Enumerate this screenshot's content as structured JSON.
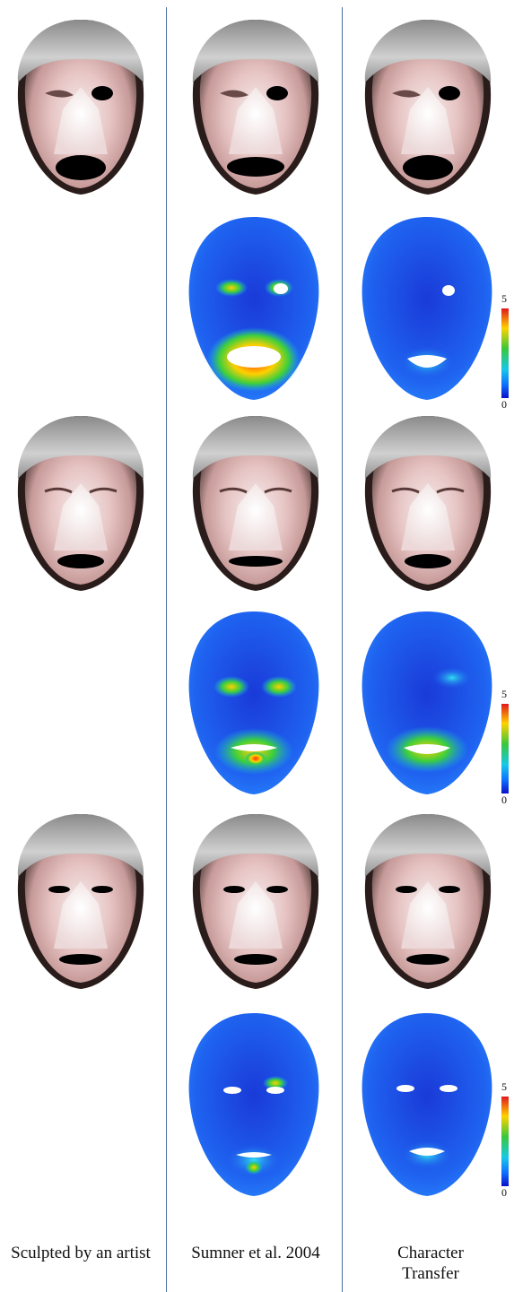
{
  "columns": [
    {
      "caption": "Sculpted by an artist"
    },
    {
      "caption": "Sumner et al. 2004"
    },
    {
      "caption": "Character Transfer"
    }
  ],
  "rows": [
    {
      "expression": "wink-open-mouth",
      "faces": [
        "sculpted",
        "sumner",
        "transfer"
      ],
      "error_maps": [
        "sumner",
        "transfer"
      ],
      "scale_labels": {
        "max": "5",
        "min": "0"
      }
    },
    {
      "expression": "closed-eyes-open-mouth",
      "faces": [
        "sculpted",
        "sumner",
        "transfer"
      ],
      "error_maps": [
        "sumner",
        "transfer"
      ],
      "scale_labels": {
        "max": "5",
        "min": "0"
      }
    },
    {
      "expression": "squint-slight-open",
      "faces": [
        "sculpted",
        "sumner",
        "transfer"
      ],
      "error_maps": [
        "sumner",
        "transfer"
      ],
      "scale_labels": {
        "max": "5",
        "min": "0"
      }
    }
  ],
  "colors": {
    "divider": "#4a6fa0",
    "error_low": "#0a10c8",
    "error_high": "#e0181c"
  }
}
